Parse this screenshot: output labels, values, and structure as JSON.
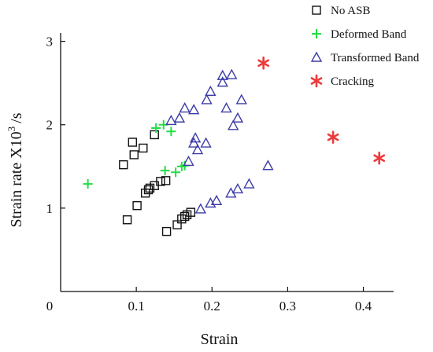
{
  "chart_data": {
    "type": "scatter",
    "title": "",
    "xlabel": "Strain",
    "ylabel": "Strain rate X10",
    "ylabel_exp": "3",
    "ylabel_unit": "/s",
    "xlim": [
      0,
      0.44
    ],
    "ylim": [
      0,
      3.1
    ],
    "x_ticks": [
      {
        "v": 0,
        "label": "0"
      },
      {
        "v": 0.1,
        "label": "0.1"
      },
      {
        "v": 0.2,
        "label": "0.2"
      },
      {
        "v": 0.3,
        "label": "0.3"
      },
      {
        "v": 0.4,
        "label": "0.4"
      }
    ],
    "y_ticks": [
      {
        "v": 1,
        "label": "1"
      },
      {
        "v": 2,
        "label": "2"
      },
      {
        "v": 3,
        "label": "3"
      }
    ],
    "grid": false,
    "legend_position": "top-right",
    "series": [
      {
        "name": "No ASB",
        "marker": "square",
        "color": "#111111",
        "points": [
          [
            0.083,
            1.52
          ],
          [
            0.097,
            1.64
          ],
          [
            0.095,
            1.79
          ],
          [
            0.109,
            1.72
          ],
          [
            0.124,
            1.88
          ],
          [
            0.088,
            0.86
          ],
          [
            0.101,
            1.03
          ],
          [
            0.112,
            1.18
          ],
          [
            0.116,
            1.22
          ],
          [
            0.118,
            1.24
          ],
          [
            0.124,
            1.27
          ],
          [
            0.132,
            1.32
          ],
          [
            0.139,
            1.33
          ],
          [
            0.14,
            0.72
          ],
          [
            0.154,
            0.8
          ],
          [
            0.16,
            0.87
          ],
          [
            0.164,
            0.9
          ],
          [
            0.167,
            0.92
          ],
          [
            0.172,
            0.95
          ]
        ]
      },
      {
        "name": "Deformed Band",
        "marker": "plus",
        "color": "#22dd44",
        "points": [
          [
            0.036,
            1.29
          ],
          [
            0.126,
            1.96
          ],
          [
            0.136,
            2.0
          ],
          [
            0.146,
            1.92
          ],
          [
            0.138,
            1.45
          ],
          [
            0.152,
            1.43
          ],
          [
            0.16,
            1.5
          ],
          [
            0.164,
            1.51
          ]
        ]
      },
      {
        "name": "Transformed Band",
        "marker": "triangle",
        "color": "#3c3ca6",
        "points": [
          [
            0.146,
            2.05
          ],
          [
            0.157,
            2.08
          ],
          [
            0.164,
            2.2
          ],
          [
            0.176,
            2.18
          ],
          [
            0.193,
            2.3
          ],
          [
            0.198,
            2.4
          ],
          [
            0.214,
            2.51
          ],
          [
            0.214,
            2.59
          ],
          [
            0.226,
            2.6
          ],
          [
            0.219,
            2.2
          ],
          [
            0.234,
            2.08
          ],
          [
            0.239,
            2.3
          ],
          [
            0.228,
            1.99
          ],
          [
            0.178,
            1.84
          ],
          [
            0.176,
            1.78
          ],
          [
            0.181,
            1.7
          ],
          [
            0.192,
            1.78
          ],
          [
            0.169,
            1.56
          ],
          [
            0.185,
            0.99
          ],
          [
            0.198,
            1.06
          ],
          [
            0.206,
            1.09
          ],
          [
            0.225,
            1.18
          ],
          [
            0.234,
            1.23
          ],
          [
            0.249,
            1.29
          ],
          [
            0.274,
            1.51
          ]
        ]
      },
      {
        "name": "Cracking",
        "marker": "asterisk",
        "color": "#ee3a3a",
        "points": [
          [
            0.268,
            2.74
          ],
          [
            0.36,
            1.85
          ],
          [
            0.421,
            1.6
          ]
        ]
      }
    ]
  }
}
